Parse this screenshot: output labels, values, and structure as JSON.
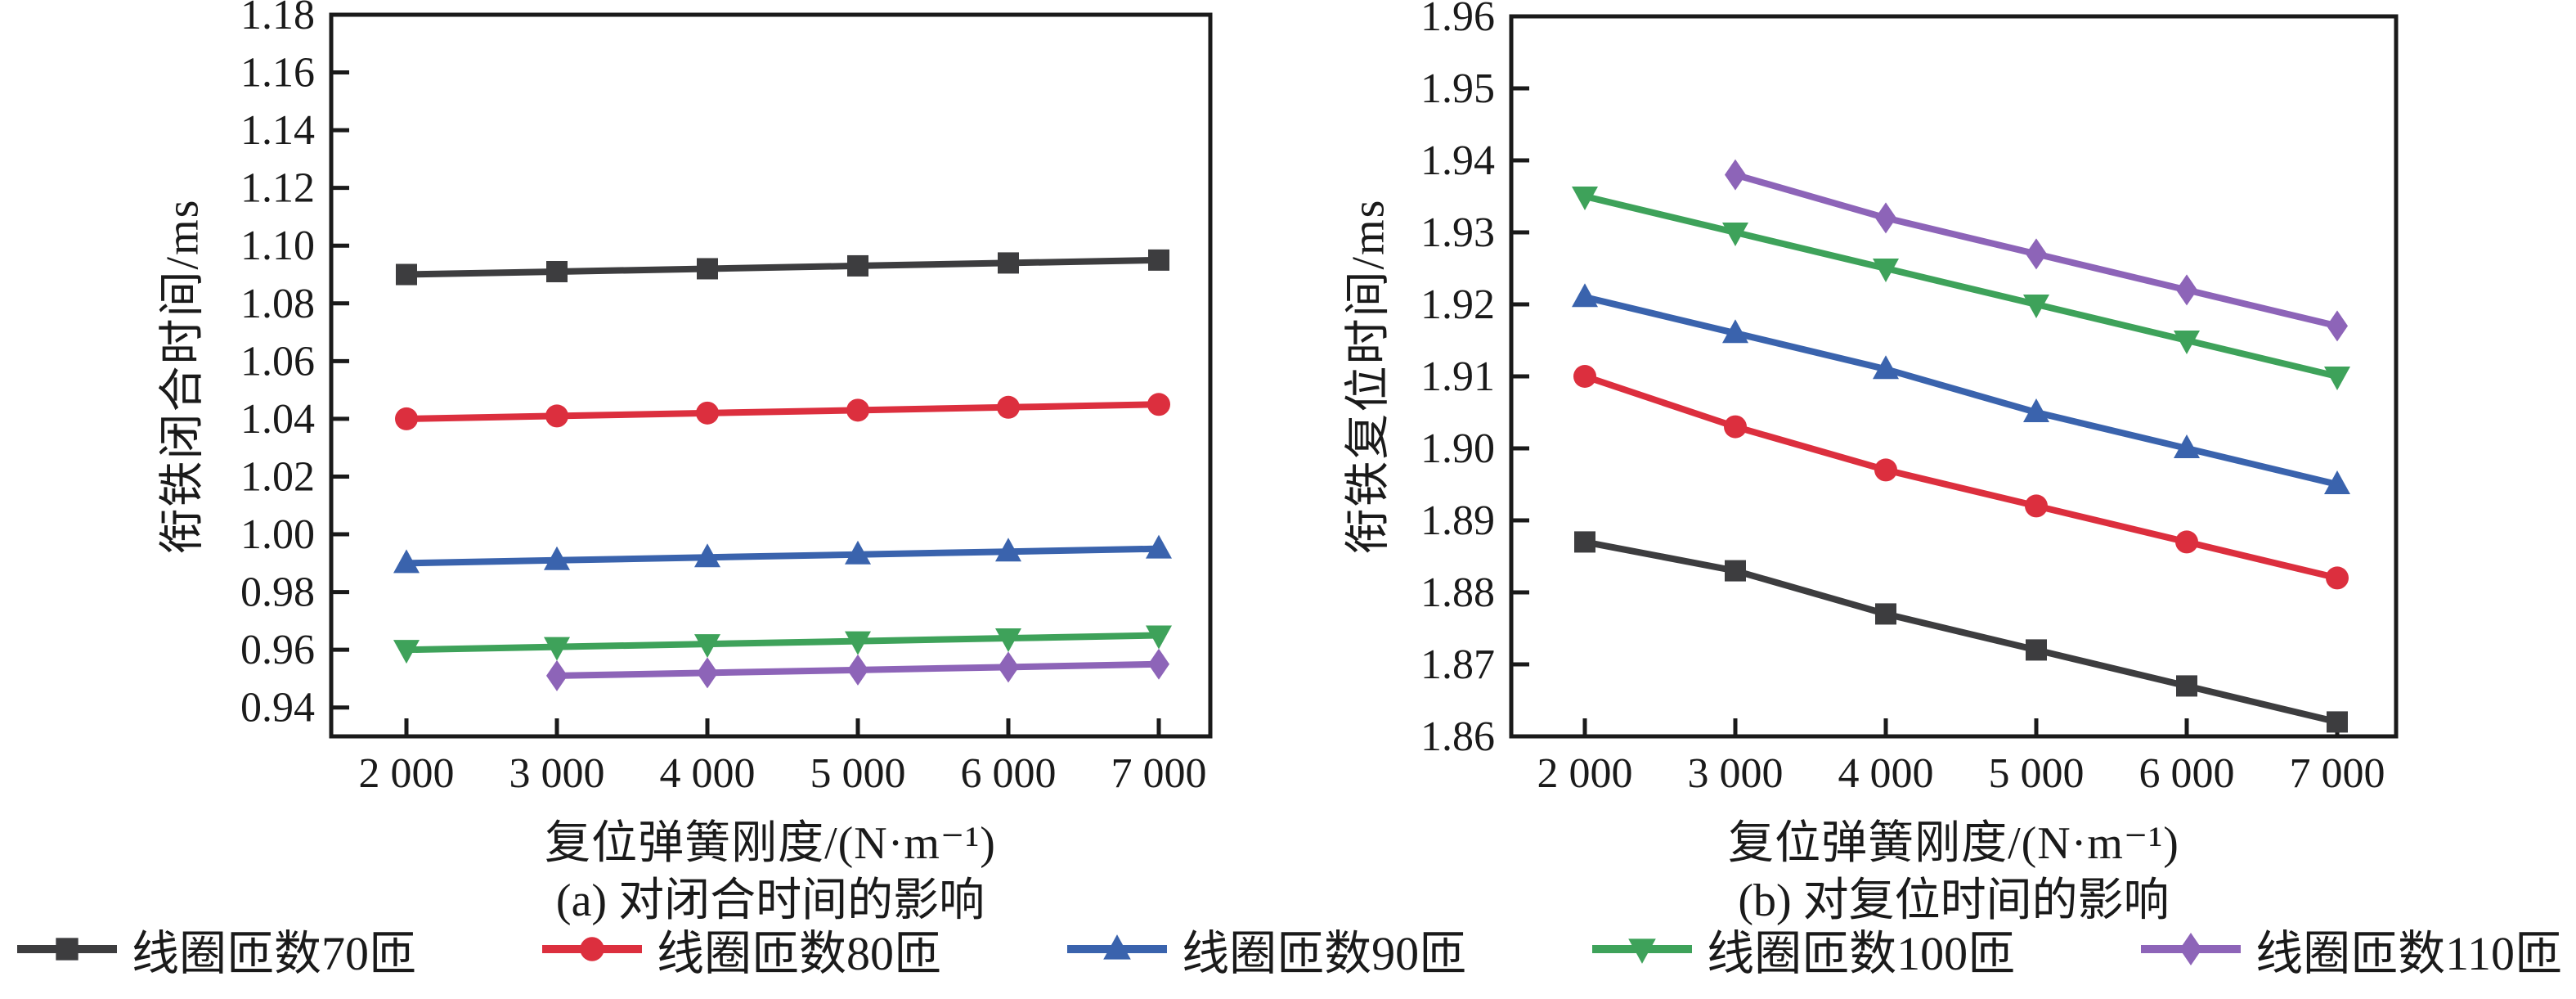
{
  "page": {
    "background": "#ffffff",
    "text_color": "#1a1a1a"
  },
  "legend": {
    "position": "bottom-center",
    "items": [
      {
        "label": "线圈匝数70匝",
        "color": "#3d3d3f",
        "marker": "square"
      },
      {
        "label": "线圈匝数80匝",
        "color": "#dc2f3e",
        "marker": "circle"
      },
      {
        "label": "线圈匝数90匝",
        "color": "#3a63ad",
        "marker": "triangle-up"
      },
      {
        "label": "线圈匝数100匝",
        "color": "#3ea25a",
        "marker": "triangle-down"
      },
      {
        "label": "线圈匝数110匝",
        "color": "#8d64b8",
        "marker": "diamond"
      }
    ]
  },
  "chart_data": [
    {
      "type": "line",
      "title": "(a) 对闭合时间的影响",
      "xlabel": "复位弹簧刚度/(N·m⁻¹)",
      "ylabel": "衔铁闭合时间/ms",
      "grid": false,
      "ylim": [
        0.93,
        1.18
      ],
      "xlim": [
        1500,
        7500
      ],
      "x_ticks": [
        2000,
        3000,
        4000,
        5000,
        6000,
        7000
      ],
      "x_tick_labels": [
        "2 000",
        "3 000",
        "4 000",
        "5 000",
        "6 000",
        "7 000"
      ],
      "y_ticks": [
        0.94,
        0.96,
        0.98,
        1.0,
        1.02,
        1.04,
        1.06,
        1.08,
        1.1,
        1.12,
        1.14,
        1.16,
        1.18
      ],
      "y_tick_labels": [
        "0.94",
        "0.96",
        "0.98",
        "1.00",
        "1.02",
        "1.04",
        "1.06",
        "1.08",
        "1.10",
        "1.12",
        "1.14",
        "1.16",
        "1.18"
      ],
      "series": [
        {
          "name": "线圈匝数70匝",
          "color": "#3d3d3f",
          "marker": "square",
          "x": [
            2000,
            3000,
            4000,
            5000,
            6000,
            7000
          ],
          "y": [
            1.09,
            1.091,
            1.092,
            1.093,
            1.094,
            1.095
          ]
        },
        {
          "name": "线圈匝数80匝",
          "color": "#dc2f3e",
          "marker": "circle",
          "x": [
            2000,
            3000,
            4000,
            5000,
            6000,
            7000
          ],
          "y": [
            1.04,
            1.041,
            1.042,
            1.043,
            1.044,
            1.045
          ]
        },
        {
          "name": "线圈匝数90匝",
          "color": "#3a63ad",
          "marker": "triangle-up",
          "x": [
            2000,
            3000,
            4000,
            5000,
            6000,
            7000
          ],
          "y": [
            0.99,
            0.991,
            0.992,
            0.993,
            0.994,
            0.995
          ]
        },
        {
          "name": "线圈匝数100匝",
          "color": "#3ea25a",
          "marker": "triangle-down",
          "x": [
            2000,
            3000,
            4000,
            5000,
            6000,
            7000
          ],
          "y": [
            0.96,
            0.961,
            0.962,
            0.963,
            0.964,
            0.965
          ]
        },
        {
          "name": "线圈匝数110匝",
          "color": "#8d64b8",
          "marker": "diamond",
          "x": [
            3000,
            4000,
            5000,
            6000,
            7000
          ],
          "y": [
            0.951,
            0.952,
            0.953,
            0.954,
            0.955
          ]
        }
      ]
    },
    {
      "type": "line",
      "title": "(b) 对复位时间的影响",
      "xlabel": "复位弹簧刚度/(N·m⁻¹)",
      "ylabel": "衔铁复位时间/ms",
      "grid": false,
      "ylim": [
        1.86,
        1.96
      ],
      "xlim": [
        1500,
        7500
      ],
      "x_ticks": [
        2000,
        3000,
        4000,
        5000,
        6000,
        7000
      ],
      "x_tick_labels": [
        "2 000",
        "3 000",
        "4 000",
        "5 000",
        "6 000",
        "7 000"
      ],
      "y_ticks": [
        1.86,
        1.87,
        1.88,
        1.89,
        1.9,
        1.91,
        1.92,
        1.93,
        1.94,
        1.95,
        1.96
      ],
      "y_tick_labels": [
        "1.86",
        "1.87",
        "1.88",
        "1.89",
        "1.90",
        "1.91",
        "1.92",
        "1.93",
        "1.94",
        "1.95",
        "1.96"
      ],
      "series": [
        {
          "name": "线圈匝数70匝",
          "color": "#3d3d3f",
          "marker": "square",
          "x": [
            2000,
            3000,
            4000,
            5000,
            6000,
            7000
          ],
          "y": [
            1.887,
            1.883,
            1.877,
            1.872,
            1.867,
            1.862
          ]
        },
        {
          "name": "线圈匝数80匝",
          "color": "#dc2f3e",
          "marker": "circle",
          "x": [
            2000,
            3000,
            4000,
            5000,
            6000,
            7000
          ],
          "y": [
            1.91,
            1.903,
            1.897,
            1.892,
            1.887,
            1.882
          ]
        },
        {
          "name": "线圈匝数90匝",
          "color": "#3a63ad",
          "marker": "triangle-up",
          "x": [
            2000,
            3000,
            4000,
            5000,
            6000,
            7000
          ],
          "y": [
            1.921,
            1.916,
            1.911,
            1.905,
            1.9,
            1.895
          ]
        },
        {
          "name": "线圈匝数100匝",
          "color": "#3ea25a",
          "marker": "triangle-down",
          "x": [
            2000,
            3000,
            4000,
            5000,
            6000,
            7000
          ],
          "y": [
            1.935,
            1.93,
            1.925,
            1.92,
            1.915,
            1.91
          ]
        },
        {
          "name": "线圈匝数110匝",
          "color": "#8d64b8",
          "marker": "diamond",
          "x": [
            3000,
            4000,
            5000,
            6000,
            7000
          ],
          "y": [
            1.938,
            1.932,
            1.927,
            1.922,
            1.917
          ]
        }
      ]
    }
  ]
}
